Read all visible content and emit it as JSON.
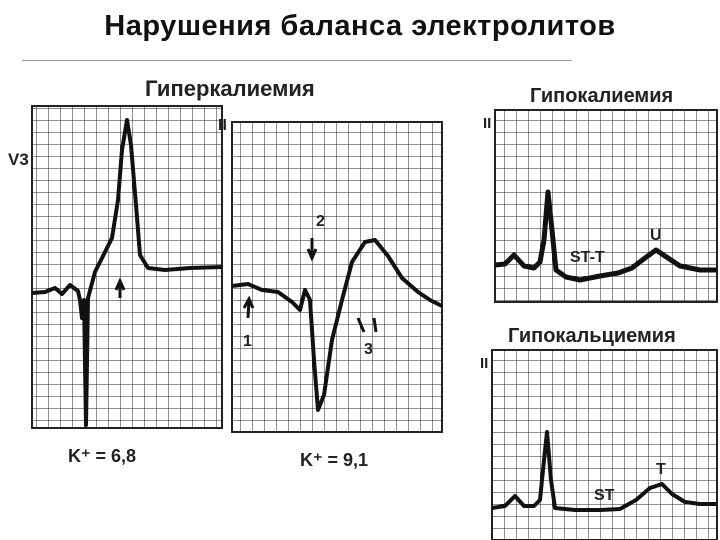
{
  "slide": {
    "title": "Нарушения баланса электролитов"
  },
  "ecg": {
    "hyperkalemia": {
      "heading": "Гиперкалиемия",
      "panel1": {
        "lead": "V3",
        "caption": "K⁺ = 6,8"
      },
      "panel2": {
        "lead": "II",
        "caption": "K⁺ = 9,1",
        "markers": [
          "1",
          "2",
          "3"
        ]
      }
    },
    "hypokalemia": {
      "heading": "Гипокалиемия",
      "lead": "II",
      "labels": [
        "ST-T",
        "U"
      ]
    },
    "hypocalcemia": {
      "heading": "Гипокальциемия",
      "lead": "II",
      "labels": [
        "ST",
        "T"
      ]
    }
  }
}
